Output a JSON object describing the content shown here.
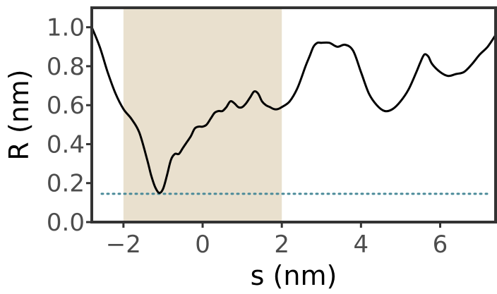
{
  "chart_data": {
    "type": "line",
    "xlabel": "s (nm)",
    "ylabel": "R (nm)",
    "xlim": [
      -2.8,
      7.4
    ],
    "ylim": [
      0.0,
      1.1
    ],
    "xticks": [
      -2,
      0,
      2,
      4,
      6
    ],
    "xtick_labels": [
      "−2",
      "0",
      "2",
      "4",
      "6"
    ],
    "yticks": [
      0.0,
      0.2,
      0.4,
      0.6,
      0.8,
      1.0
    ],
    "ytick_labels": [
      "0.0",
      "0.2",
      "0.4",
      "0.6",
      "0.8",
      "1.0"
    ],
    "grid": false,
    "shaded_region": {
      "x_start": -2.0,
      "x_end": 2.0,
      "color": "#e9e0ce"
    },
    "reference_line": {
      "y": 0.145,
      "style": "dotted",
      "color": "#4a8a99"
    },
    "series": [
      {
        "color": "#000000",
        "x": [
          -2.8,
          -2.6,
          -2.4,
          -2.2,
          -2.0,
          -1.8,
          -1.6,
          -1.4,
          -1.3,
          -1.2,
          -1.1,
          -1.0,
          -0.9,
          -0.8,
          -0.7,
          -0.6,
          -0.5,
          -0.4,
          -0.3,
          -0.2,
          -0.1,
          0.0,
          0.1,
          0.2,
          0.3,
          0.4,
          0.5,
          0.6,
          0.7,
          0.8,
          0.9,
          1.0,
          1.1,
          1.2,
          1.3,
          1.4,
          1.5,
          1.6,
          1.7,
          1.8,
          1.9,
          2.0,
          2.2,
          2.4,
          2.6,
          2.7,
          2.8,
          2.9,
          3.0,
          3.2,
          3.4,
          3.6,
          3.8,
          4.0,
          4.2,
          4.4,
          4.6,
          4.8,
          5.0,
          5.2,
          5.4,
          5.5,
          5.6,
          5.7,
          5.8,
          6.0,
          6.2,
          6.4,
          6.6,
          6.8,
          7.0,
          7.2,
          7.4
        ],
        "y": [
          1.0,
          0.9,
          0.77,
          0.66,
          0.58,
          0.53,
          0.46,
          0.32,
          0.24,
          0.18,
          0.15,
          0.17,
          0.24,
          0.32,
          0.35,
          0.35,
          0.38,
          0.41,
          0.44,
          0.48,
          0.49,
          0.49,
          0.5,
          0.53,
          0.56,
          0.57,
          0.57,
          0.59,
          0.62,
          0.61,
          0.59,
          0.59,
          0.61,
          0.64,
          0.67,
          0.66,
          0.62,
          0.6,
          0.59,
          0.58,
          0.58,
          0.59,
          0.62,
          0.69,
          0.8,
          0.85,
          0.9,
          0.92,
          0.92,
          0.92,
          0.9,
          0.91,
          0.88,
          0.77,
          0.66,
          0.6,
          0.57,
          0.58,
          0.62,
          0.68,
          0.77,
          0.82,
          0.86,
          0.85,
          0.81,
          0.77,
          0.75,
          0.76,
          0.77,
          0.81,
          0.86,
          0.9,
          0.96
        ]
      }
    ]
  }
}
